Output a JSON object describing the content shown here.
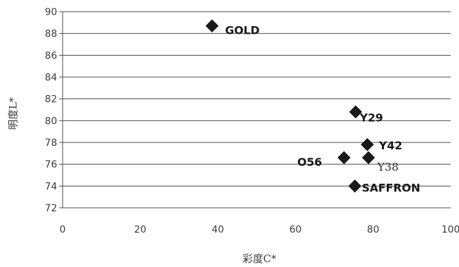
{
  "chart_data": {
    "type": "scatter",
    "xlabel": "彩度C*",
    "ylabel": "明度L*",
    "xlim": [
      0,
      100
    ],
    "ylim": [
      72,
      90
    ],
    "x_ticks": [
      0,
      20,
      40,
      60,
      80,
      100
    ],
    "y_ticks": [
      72,
      74,
      76,
      78,
      80,
      82,
      84,
      86,
      88,
      90
    ],
    "grid": "horizontal",
    "marker": "diamond",
    "marker_color": "#1a1a1a",
    "points": [
      {
        "label": "GOLD",
        "x": 38.5,
        "y": 88.7
      },
      {
        "label": "Y29",
        "x": 75.5,
        "y": 80.8
      },
      {
        "label": "Y42",
        "x": 78.5,
        "y": 77.8
      },
      {
        "label": "O56",
        "x": 72.5,
        "y": 76.6
      },
      {
        "label": "Y38",
        "x": 78.8,
        "y": 76.6
      },
      {
        "label": "SAFFRON",
        "x": 75.3,
        "y": 74.0
      }
    ]
  }
}
